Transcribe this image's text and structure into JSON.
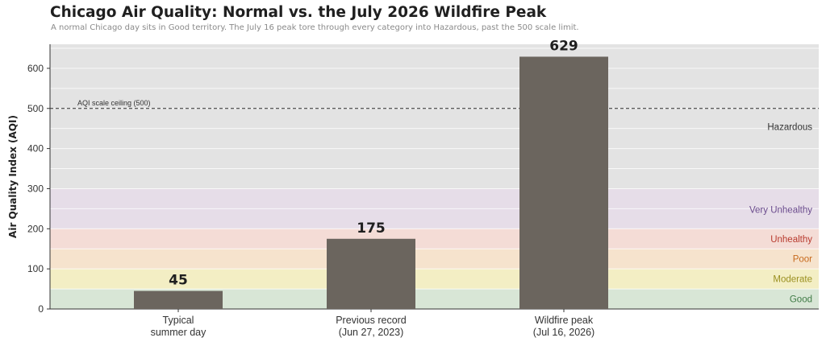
{
  "header": {
    "title": "Chicago Air Quality: Normal vs. the July 2026 Wildfire Peak",
    "subtitle": "A normal Chicago day sits in Good territory. The July 16 peak tore through every category into Hazardous, past the 500 scale limit."
  },
  "chart_data": {
    "type": "bar",
    "categories": [
      [
        "Typical",
        "summer day"
      ],
      [
        "Previous record",
        "(Jun 27, 2023)"
      ],
      [
        "Wildfire peak",
        "(Jul 16, 2026)"
      ]
    ],
    "values": [
      45,
      175,
      629
    ],
    "ylabel": "Air Quality Index (AQI)",
    "ylim": [
      0,
      660
    ],
    "yticks": [
      0,
      100,
      200,
      300,
      400,
      500,
      600
    ],
    "grid": true,
    "bar_color": "#6b655e",
    "reference_line": {
      "value": 500,
      "label": "AQI scale ceiling (500)"
    },
    "bands": [
      {
        "name": "Good",
        "from": 0,
        "to": 50,
        "color": "#d8e6d6",
        "label_color": "#3f7a45"
      },
      {
        "name": "Moderate",
        "from": 50,
        "to": 100,
        "color": "#f3eec4",
        "label_color": "#9a9020"
      },
      {
        "name": "Poor",
        "from": 100,
        "to": 150,
        "color": "#f6e3cd",
        "label_color": "#c76a1d"
      },
      {
        "name": "Unhealthy",
        "from": 150,
        "to": 200,
        "color": "#f4dcd6",
        "label_color": "#b83a2e"
      },
      {
        "name": "Very Unhealthy",
        "from": 200,
        "to": 300,
        "color": "#e6dde8",
        "label_color": "#6a4a8c"
      },
      {
        "name": "Hazardous",
        "from": 300,
        "to": 660,
        "color": "#e3e3e3",
        "label_color": "#333333"
      }
    ]
  }
}
